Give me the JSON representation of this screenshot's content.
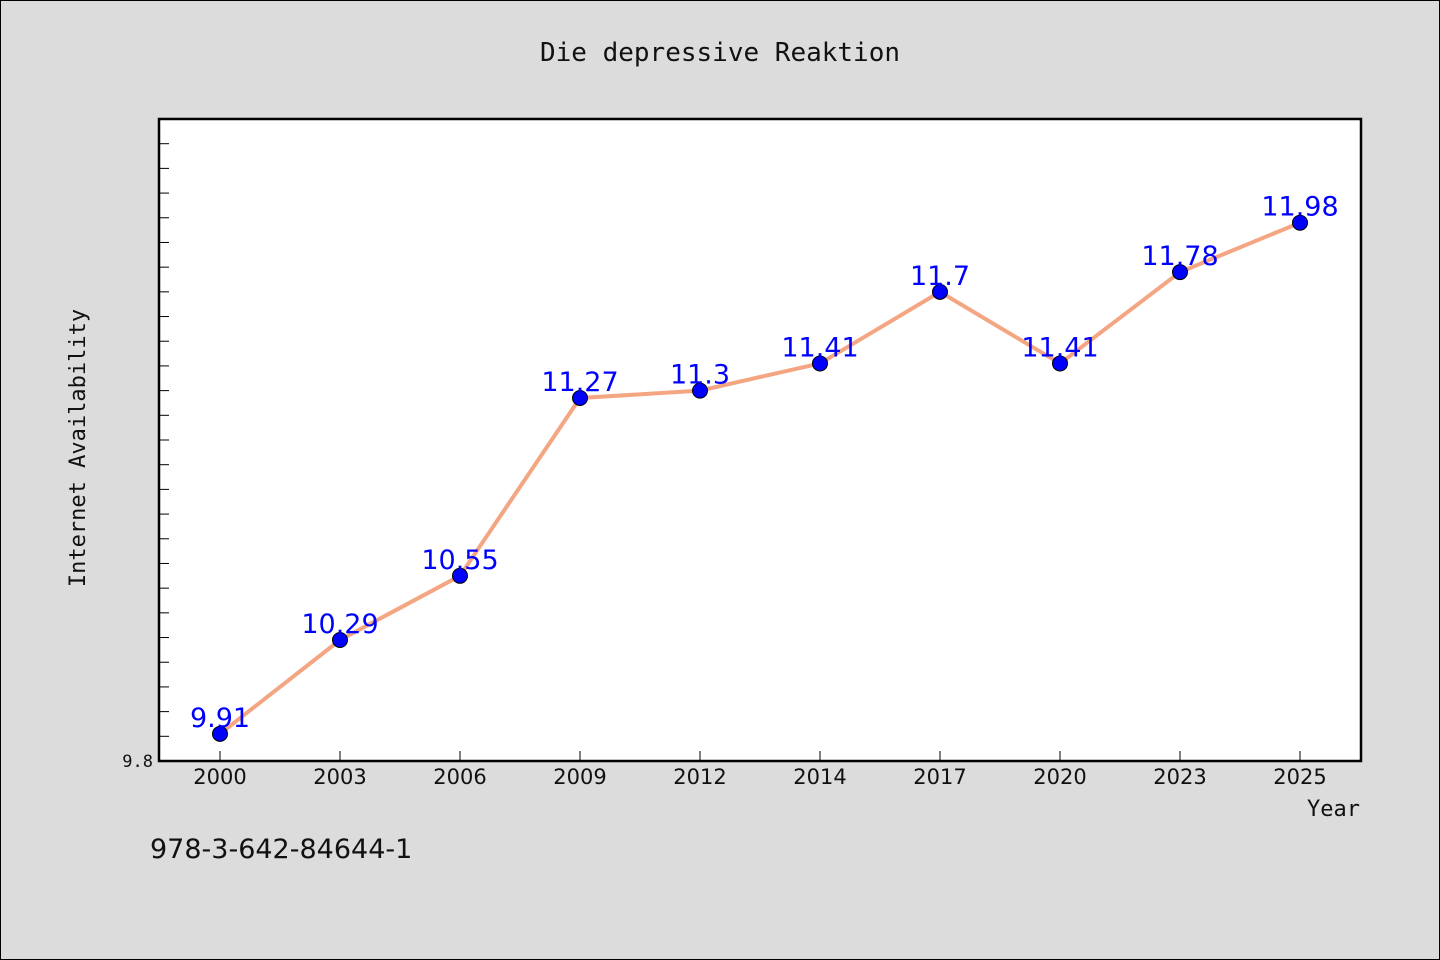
{
  "chart_data": {
    "type": "line",
    "title": "Die depressive Reaktion",
    "xlabel": "Year",
    "ylabel": "Internet Availability",
    "categories": [
      "2000",
      "2003",
      "2006",
      "2009",
      "2012",
      "2014",
      "2017",
      "2020",
      "2023",
      "2025"
    ],
    "series": [
      {
        "values": [
          9.91,
          10.29,
          10.55,
          11.27,
          11.3,
          11.41,
          11.7,
          11.41,
          11.78,
          11.98
        ],
        "labels": [
          "9.91",
          "10.29",
          "10.55",
          "11.27",
          "11.3",
          "11.41",
          "11.7",
          "11.41",
          "11.78",
          "11.98"
        ],
        "line_color": "#f4a582",
        "marker_color": "#0000ff",
        "label_color": "#0000ff"
      }
    ],
    "ylim": [
      9.8,
      12.4
    ],
    "yticks_labeled": [
      "9.8"
    ],
    "grid": false,
    "legend": "none"
  },
  "footer": {
    "isbn": "978-3-642-84644-1"
  },
  "colors": {
    "background": "#dcdcdc",
    "plot_background": "#ffffff"
  }
}
